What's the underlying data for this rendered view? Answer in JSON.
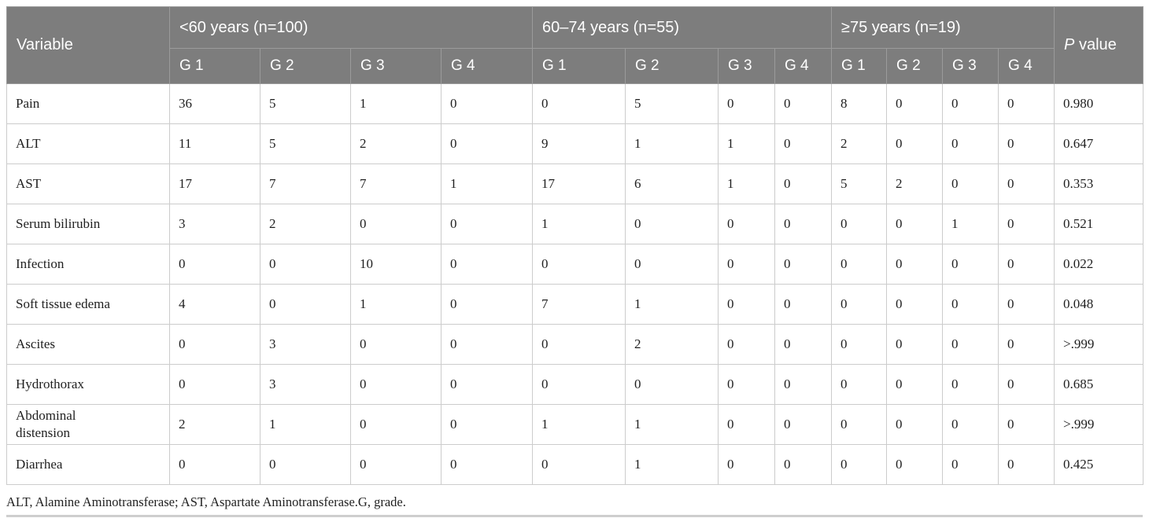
{
  "theme": {
    "header_bg": "#7d7d7d",
    "header_text": "#ffffff",
    "header_border": "#9b9b9b",
    "border": "#cccccc",
    "body_text": "#1f1f1f"
  },
  "table": {
    "header": {
      "variable_label": "Variable",
      "p_italic": "P",
      "p_rest": "value",
      "groups": [
        {
          "label": "<60 years (n=100)",
          "cols": [
            "G 1",
            "G 2",
            "G 3",
            "G 4"
          ]
        },
        {
          "label": "60–74 years (n=55)",
          "cols": [
            "G 1",
            "G 2",
            "G 3",
            "G 4"
          ]
        },
        {
          "label": "≥75 years (n=19)",
          "cols": [
            "G 1",
            "G 2",
            "G 3",
            "G 4"
          ]
        }
      ]
    },
    "rows": [
      {
        "variable": "Pain",
        "values": [
          "36",
          "5",
          "1",
          "0",
          "0",
          "5",
          "0",
          "0",
          "8",
          "0",
          "0",
          "0"
        ],
        "p": "0.980"
      },
      {
        "variable": "ALT",
        "values": [
          "11",
          "5",
          "2",
          "0",
          "9",
          "1",
          "1",
          "0",
          "2",
          "0",
          "0",
          "0"
        ],
        "p": "0.647"
      },
      {
        "variable": "AST",
        "values": [
          "17",
          "7",
          "7",
          "1",
          "17",
          "6",
          "1",
          "0",
          "5",
          "2",
          "0",
          "0"
        ],
        "p": "0.353"
      },
      {
        "variable": "Serum bilirubin",
        "values": [
          "3",
          "2",
          "0",
          "0",
          "1",
          "0",
          "0",
          "0",
          "0",
          "0",
          "1",
          "0"
        ],
        "p": "0.521"
      },
      {
        "variable": "Infection",
        "values": [
          "0",
          "0",
          "10",
          "0",
          "0",
          "0",
          "0",
          "0",
          "0",
          "0",
          "0",
          "0"
        ],
        "p": "0.022"
      },
      {
        "variable": "Soft tissue edema",
        "values": [
          "4",
          "0",
          "1",
          "0",
          "7",
          "1",
          "0",
          "0",
          "0",
          "0",
          "0",
          "0"
        ],
        "p": "0.048"
      },
      {
        "variable": "Ascites",
        "values": [
          "0",
          "3",
          "0",
          "0",
          "0",
          "2",
          "0",
          "0",
          "0",
          "0",
          "0",
          "0"
        ],
        "p": ">.999"
      },
      {
        "variable": "Hydrothorax",
        "values": [
          "0",
          "3",
          "0",
          "0",
          "0",
          "0",
          "0",
          "0",
          "0",
          "0",
          "0",
          "0"
        ],
        "p": "0.685"
      },
      {
        "variable": "Abdominal distension",
        "values": [
          "2",
          "1",
          "0",
          "0",
          "1",
          "1",
          "0",
          "0",
          "0",
          "0",
          "0",
          "0"
        ],
        "p": ">.999"
      },
      {
        "variable": "Diarrhea",
        "values": [
          "0",
          "0",
          "0",
          "0",
          "0",
          "1",
          "0",
          "0",
          "0",
          "0",
          "0",
          "0"
        ],
        "p": "0.425"
      }
    ],
    "footnote": "ALT, Alamine Aminotransferase; AST, Aspartate Aminotransferase.G, grade."
  }
}
